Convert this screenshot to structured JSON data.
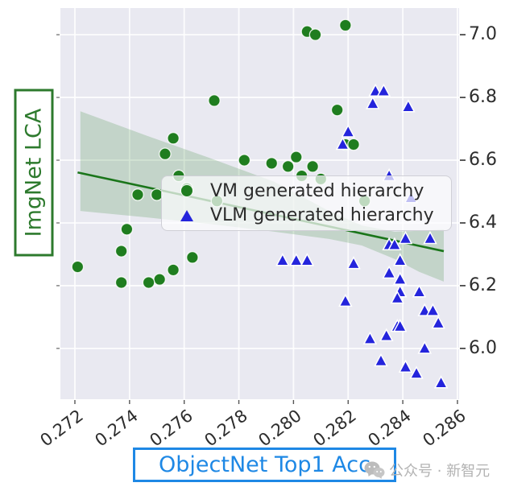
{
  "figure": {
    "background": "#ffffff",
    "plot_bg": "#e9e9f1",
    "grid_color": "#ffffff"
  },
  "axes": {
    "xlabel": "ObjectNet Top1 Acc",
    "ylabel": "ImgNet LCA",
    "xlabel_color": "#1e88e5",
    "ylabel_color": "#2d7a2d",
    "xlim": [
      0.27147,
      0.28606
    ],
    "ylim": [
      5.838,
      7.085
    ],
    "xtick_values": [
      0.272,
      0.274,
      0.276,
      0.278,
      0.28,
      0.282,
      0.284,
      0.286
    ],
    "xtick_labels": [
      "0.272",
      "0.274",
      "0.276",
      "0.278",
      "0.280",
      "0.282",
      "0.284",
      "0.286"
    ],
    "ytick_values": [
      7.0,
      6.8,
      6.6,
      6.4,
      6.2,
      6.0
    ],
    "ytick_labels": [
      "7.0",
      "6.8",
      "6.6",
      "6.4",
      "6.2",
      "6.0"
    ],
    "grid": true
  },
  "legend": {
    "position": "center-right-inside",
    "entries": [
      "VM generated hierarchy",
      "VLM generated hierarchy"
    ]
  },
  "watermark": {
    "text": "公众号 · 新智元",
    "icon": "wechat-icon",
    "color": "#b3b3b3"
  },
  "chart_data": {
    "type": "scatter",
    "title": "",
    "xlabel": "ObjectNet Top1 Acc",
    "ylabel": "ImgNet LCA",
    "xlim": [
      0.27147,
      0.28606
    ],
    "ylim": [
      5.838,
      7.085
    ],
    "legend_position": "center right inside plot",
    "grid": "white on lavender (seaborn darkgrid)",
    "series": [
      {
        "name": "VM generated hierarchy",
        "marker": "circle",
        "color": "#1f7d1f",
        "points": [
          [
            0.2819,
            7.03
          ],
          [
            0.2805,
            7.01
          ],
          [
            0.2808,
            7.0
          ],
          [
            0.2771,
            6.79
          ],
          [
            0.2816,
            6.76
          ],
          [
            0.2756,
            6.67
          ],
          [
            0.2819,
            6.65
          ],
          [
            0.2822,
            6.65
          ],
          [
            0.2753,
            6.62
          ],
          [
            0.2782,
            6.6
          ],
          [
            0.2801,
            6.61
          ],
          [
            0.2792,
            6.59
          ],
          [
            0.2798,
            6.58
          ],
          [
            0.2807,
            6.58
          ],
          [
            0.2758,
            6.55
          ],
          [
            0.2803,
            6.55
          ],
          [
            0.281,
            6.54
          ],
          [
            0.2761,
            6.51
          ],
          [
            0.2743,
            6.49
          ],
          [
            0.275,
            6.49
          ],
          [
            0.2772,
            6.47
          ],
          [
            0.2826,
            6.47
          ],
          [
            0.2739,
            6.38
          ],
          [
            0.2737,
            6.31
          ],
          [
            0.2763,
            6.29
          ],
          [
            0.2721,
            6.26
          ],
          [
            0.2756,
            6.25
          ],
          [
            0.2751,
            6.22
          ],
          [
            0.2737,
            6.21
          ],
          [
            0.2747,
            6.21
          ]
        ]
      },
      {
        "name": "VLM generated hierarchy",
        "marker": "triangle",
        "color": "#2424dc",
        "points": [
          [
            0.283,
            6.82
          ],
          [
            0.2833,
            6.82
          ],
          [
            0.2829,
            6.78
          ],
          [
            0.2842,
            6.77
          ],
          [
            0.282,
            6.69
          ],
          [
            0.2818,
            6.65
          ],
          [
            0.2835,
            6.55
          ],
          [
            0.2843,
            6.48
          ],
          [
            0.2841,
            6.35
          ],
          [
            0.285,
            6.35
          ],
          [
            0.2835,
            6.33
          ],
          [
            0.2837,
            6.33
          ],
          [
            0.2796,
            6.28
          ],
          [
            0.2801,
            6.28
          ],
          [
            0.2805,
            6.28
          ],
          [
            0.2822,
            6.27
          ],
          [
            0.2839,
            6.28
          ],
          [
            0.2835,
            6.24
          ],
          [
            0.2839,
            6.22
          ],
          [
            0.2839,
            6.18
          ],
          [
            0.2846,
            6.18
          ],
          [
            0.2838,
            6.16
          ],
          [
            0.2819,
            6.15
          ],
          [
            0.2848,
            6.12
          ],
          [
            0.2851,
            6.12
          ],
          [
            0.2853,
            6.08
          ],
          [
            0.2838,
            6.07
          ],
          [
            0.2839,
            6.07
          ],
          [
            0.2828,
            6.03
          ],
          [
            0.2834,
            6.04
          ],
          [
            0.2848,
            6.0
          ],
          [
            0.2832,
            5.96
          ],
          [
            0.2841,
            5.94
          ],
          [
            0.2845,
            5.92
          ],
          [
            0.2854,
            5.89
          ]
        ]
      }
    ],
    "regression": {
      "color": "#1a751a",
      "line": [
        [
          0.2721,
          6.561
        ],
        [
          0.2855,
          6.31
        ]
      ],
      "band_color": "rgba(44,130,44,0.20)",
      "band": {
        "x": [
          0.2722,
          0.2746,
          0.2769,
          0.2793,
          0.2813,
          0.2825,
          0.2837,
          0.2846,
          0.2855
        ],
        "upper": [
          6.756,
          6.679,
          6.608,
          6.531,
          6.438,
          6.392,
          6.372,
          6.375,
          6.379
        ],
        "lower": [
          6.438,
          6.418,
          6.397,
          6.372,
          6.349,
          6.328,
          6.285,
          6.244,
          6.213
        ]
      }
    }
  }
}
